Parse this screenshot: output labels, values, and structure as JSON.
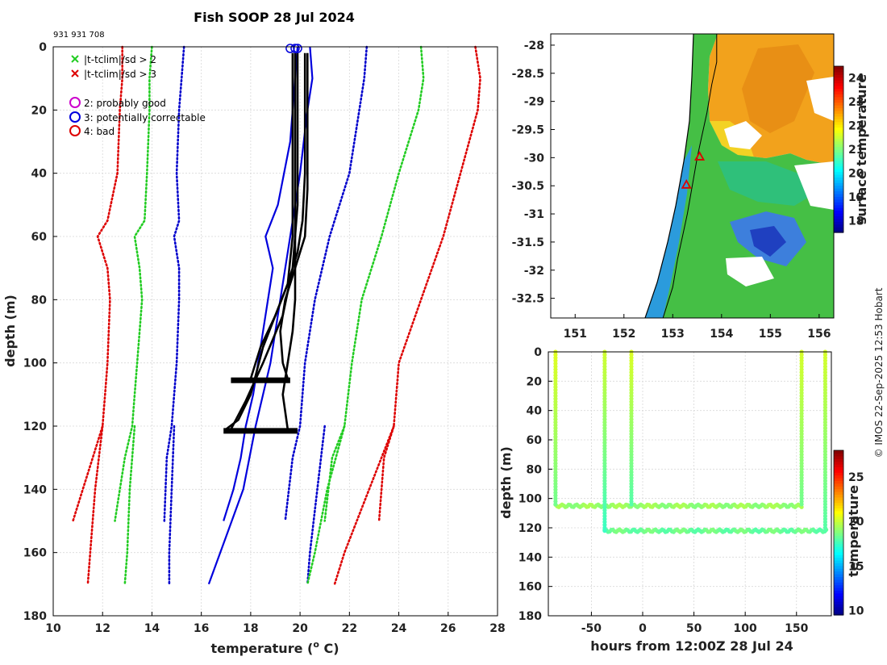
{
  "chart_data": [
    {
      "type": "line",
      "title": "Fish SOOP 28 Jul 2024",
      "subtitle": "931 931 708",
      "xlabel": "temperature (",
      "xlabel_sup": "o",
      "xlabel_end": " C)",
      "ylabel": "depth (m)",
      "xlim": [
        10,
        28
      ],
      "ylim": [
        180,
        0
      ],
      "xticks": [
        "10",
        "12",
        "14",
        "16",
        "18",
        "20",
        "22",
        "24",
        "26",
        "28"
      ],
      "yticks": [
        "0",
        "20",
        "40",
        "60",
        "80",
        "100",
        "120",
        "140",
        "160",
        "180"
      ],
      "legend": [
        {
          "label": "|t-tclim|/sd > 2",
          "marker": "x",
          "color": "#22cc22"
        },
        {
          "label": "|t-tclim|/sd > 3",
          "marker": "x",
          "color": "#dd0000"
        },
        {
          "label": "2: probably good",
          "marker": "o",
          "color": "#cc00cc"
        },
        {
          "label": "3: potentially correctable",
          "marker": "o",
          "color": "#0000dd"
        },
        {
          "label": "4: bad",
          "marker": "o",
          "color": "#dd0000"
        }
      ],
      "series": [
        {
          "name": "clim -3sd",
          "color": "#dd0000",
          "style": "dotted",
          "points": [
            [
              12.8,
              0
            ],
            [
              12.8,
              10
            ],
            [
              12.7,
              20
            ],
            [
              12.6,
              40
            ],
            [
              12.2,
              55
            ],
            [
              11.8,
              60
            ],
            [
              12.2,
              70
            ],
            [
              12.3,
              80
            ],
            [
              12.2,
              100
            ],
            [
              12.1,
              110
            ],
            [
              12.0,
              120
            ],
            [
              11.6,
              130
            ],
            [
              11.2,
              140
            ],
            [
              10.8,
              150
            ]
          ]
        },
        {
          "name": "clim -3sd deep",
          "color": "#dd0000",
          "style": "dotted",
          "points": [
            [
              12.0,
              120
            ],
            [
              11.7,
              140
            ],
            [
              11.5,
              160
            ],
            [
              11.4,
              170
            ]
          ]
        },
        {
          "name": "clim -2sd",
          "color": "#22cc22",
          "style": "dotted",
          "points": [
            [
              14.0,
              0
            ],
            [
              13.9,
              10
            ],
            [
              13.9,
              20
            ],
            [
              13.8,
              40
            ],
            [
              13.7,
              55
            ],
            [
              13.3,
              60
            ],
            [
              13.5,
              70
            ],
            [
              13.6,
              80
            ],
            [
              13.4,
              100
            ],
            [
              13.3,
              110
            ],
            [
              13.2,
              120
            ],
            [
              12.9,
              130
            ],
            [
              12.5,
              150
            ]
          ]
        },
        {
          "name": "clim -2sd deep",
          "color": "#22cc22",
          "style": "dotted",
          "points": [
            [
              13.3,
              120
            ],
            [
              13.1,
              140
            ],
            [
              13.0,
              160
            ],
            [
              12.9,
              170
            ]
          ]
        },
        {
          "name": "clim -1sd",
          "color": "#0000cc",
          "style": "dotted",
          "points": [
            [
              15.3,
              0
            ],
            [
              15.2,
              10
            ],
            [
              15.1,
              20
            ],
            [
              15.0,
              40
            ],
            [
              15.1,
              55
            ],
            [
              14.9,
              60
            ],
            [
              15.1,
              70
            ],
            [
              15.1,
              80
            ],
            [
              15.0,
              100
            ],
            [
              14.9,
              110
            ],
            [
              14.8,
              120
            ],
            [
              14.6,
              130
            ],
            [
              14.5,
              150
            ]
          ]
        },
        {
          "name": "clim -1sd deep",
          "color": "#0000cc",
          "style": "dotted",
          "points": [
            [
              14.9,
              120
            ],
            [
              14.8,
              140
            ],
            [
              14.7,
              160
            ],
            [
              14.7,
              170
            ]
          ]
        },
        {
          "name": "clim +1sd",
          "color": "#0000cc",
          "style": "dotted",
          "points": [
            [
              22.7,
              0
            ],
            [
              22.6,
              10
            ],
            [
              22.4,
              20
            ],
            [
              22.0,
              40
            ],
            [
              21.2,
              60
            ],
            [
              20.6,
              80
            ],
            [
              20.2,
              100
            ],
            [
              20.0,
              120
            ],
            [
              19.7,
              130
            ],
            [
              19.4,
              150
            ]
          ]
        },
        {
          "name": "clim +1sd deep",
          "color": "#0000cc",
          "style": "dotted",
          "points": [
            [
              21.0,
              120
            ],
            [
              20.7,
              140
            ],
            [
              20.4,
              160
            ],
            [
              20.3,
              170
            ]
          ]
        },
        {
          "name": "clim +2sd",
          "color": "#22cc22",
          "style": "dotted",
          "points": [
            [
              24.9,
              0
            ],
            [
              25.0,
              10
            ],
            [
              24.8,
              20
            ],
            [
              24.0,
              40
            ],
            [
              23.3,
              60
            ],
            [
              22.5,
              80
            ],
            [
              22.1,
              100
            ],
            [
              21.8,
              120
            ],
            [
              21.3,
              130
            ],
            [
              21.0,
              150
            ]
          ]
        },
        {
          "name": "clim +2sd deep",
          "color": "#22cc22",
          "style": "dotted",
          "points": [
            [
              21.8,
              120
            ],
            [
              21.1,
              140
            ],
            [
              20.6,
              160
            ],
            [
              20.3,
              170
            ]
          ]
        },
        {
          "name": "clim +3sd",
          "color": "#dd0000",
          "style": "dotted",
          "points": [
            [
              27.1,
              0
            ],
            [
              27.3,
              10
            ],
            [
              27.2,
              20
            ],
            [
              26.5,
              40
            ],
            [
              25.8,
              60
            ],
            [
              24.9,
              80
            ],
            [
              24.0,
              100
            ],
            [
              23.8,
              120
            ],
            [
              23.4,
              130
            ],
            [
              23.2,
              150
            ]
          ]
        },
        {
          "name": "clim +3sd deep",
          "color": "#dd0000",
          "style": "dotted",
          "points": [
            [
              23.8,
              120
            ],
            [
              22.8,
              140
            ],
            [
              21.8,
              160
            ],
            [
              21.4,
              170
            ]
          ]
        },
        {
          "name": "profile blue 1",
          "color": "#0000dd",
          "style": "solid",
          "points": [
            [
              19.9,
              0
            ],
            [
              19.6,
              30
            ],
            [
              19.1,
              50
            ],
            [
              18.6,
              60
            ],
            [
              18.9,
              70
            ],
            [
              18.7,
              80
            ],
            [
              18.5,
              90
            ],
            [
              18.3,
              100
            ],
            [
              18.1,
              110
            ],
            [
              17.8,
              120
            ],
            [
              17.6,
              130
            ],
            [
              17.3,
              140
            ],
            [
              16.9,
              150
            ]
          ]
        },
        {
          "name": "profile blue 2",
          "color": "#0000dd",
          "style": "solid",
          "points": [
            [
              20.4,
              0
            ],
            [
              20.5,
              10
            ],
            [
              20.3,
              20
            ],
            [
              20.0,
              40
            ],
            [
              19.6,
              60
            ],
            [
              19.2,
              80
            ],
            [
              18.8,
              100
            ],
            [
              18.2,
              120
            ],
            [
              17.7,
              140
            ],
            [
              17.0,
              155
            ],
            [
              16.3,
              170
            ]
          ]
        },
        {
          "name": "profile black 1",
          "color": "#000000",
          "style": "solid",
          "points": [
            [
              20.2,
              2
            ],
            [
              20.2,
              40
            ],
            [
              20.1,
              55
            ],
            [
              19.9,
              65
            ],
            [
              19.5,
              75
            ],
            [
              19.0,
              85
            ],
            [
              18.4,
              95
            ],
            [
              18.0,
              105
            ]
          ]
        },
        {
          "name": "profile black 2",
          "color": "#000000",
          "style": "solid",
          "points": [
            [
              20.3,
              2
            ],
            [
              20.3,
              45
            ],
            [
              20.2,
              60
            ],
            [
              19.8,
              70
            ],
            [
              19.4,
              80
            ],
            [
              19.2,
              90
            ],
            [
              19.3,
              100
            ],
            [
              19.5,
              105
            ]
          ]
        },
        {
          "name": "profile black 3",
          "color": "#000000",
          "style": "solid",
          "points": [
            [
              19.8,
              2
            ],
            [
              19.8,
              60
            ],
            [
              19.8,
              80
            ],
            [
              19.7,
              90
            ],
            [
              19.5,
              100
            ],
            [
              19.3,
              110
            ],
            [
              19.5,
              121
            ]
          ]
        },
        {
          "name": "profile black 4",
          "color": "#000000",
          "style": "solid",
          "points": [
            [
              19.7,
              2
            ],
            [
              19.7,
              60
            ],
            [
              19.5,
              75
            ],
            [
              19.0,
              85
            ],
            [
              18.5,
              95
            ],
            [
              18.0,
              110
            ],
            [
              17.5,
              118
            ],
            [
              17.0,
              121
            ]
          ]
        },
        {
          "name": "profile black 5",
          "color": "#000000",
          "style": "solid",
          "points": [
            [
              19.9,
              2
            ],
            [
              19.9,
              50
            ],
            [
              19.7,
              70
            ],
            [
              19.3,
              85
            ],
            [
              18.5,
              100
            ],
            [
              17.8,
              112
            ],
            [
              17.2,
              121
            ]
          ]
        }
      ],
      "bottom_bars": [
        {
          "depth": 105.5,
          "xmin": 17.2,
          "xmax": 19.6
        },
        {
          "depth": 121.5,
          "xmin": 16.9,
          "xmax": 19.9
        }
      ],
      "surface_markers": [
        19.6,
        19.8,
        19.9
      ]
    },
    {
      "type": "heatmap",
      "colorbar_label": "surface temperature",
      "colorbar_ticks": [
        "18",
        "19",
        "20",
        "21",
        "22",
        "23",
        "24"
      ],
      "colorbar_range": [
        17.5,
        24.5
      ],
      "xlim": [
        150.5,
        156.3
      ],
      "ylim": [
        -32.85,
        -27.8
      ],
      "xticks": [
        "151",
        "152",
        "153",
        "154",
        "155",
        "156"
      ],
      "yticks": [
        "-28",
        "-28.5",
        "-29",
        "-29.5",
        "-30",
        "-30.5",
        "-31",
        "-31.5",
        "-32",
        "-32.5"
      ],
      "track": [
        [
          153.9,
          -27.8
        ],
        [
          153.9,
          -28.3
        ],
        [
          153.8,
          -28.7
        ],
        [
          153.7,
          -29.2
        ],
        [
          153.6,
          -29.6
        ],
        [
          153.5,
          -30.0
        ],
        [
          153.4,
          -30.5
        ],
        [
          153.3,
          -31.0
        ],
        [
          153.2,
          -31.4
        ],
        [
          153.1,
          -31.8
        ],
        [
          153.0,
          -32.3
        ],
        [
          152.8,
          -32.85
        ]
      ],
      "stations": [
        [
          153.55,
          -29.98
        ],
        [
          153.28,
          -30.48
        ]
      ]
    },
    {
      "type": "scatter",
      "xlabel": "hours from 12:00Z 28 Jul 24",
      "ylabel": "depth (m)",
      "colorbar_label": "temperature",
      "colorbar_ticks": [
        "10",
        "15",
        "20",
        "25"
      ],
      "colorbar_range": [
        9.5,
        28
      ],
      "xlim": [
        -92,
        184
      ],
      "ylim": [
        180,
        0
      ],
      "xticks": [
        "-50",
        "0",
        "50",
        "100",
        "150"
      ],
      "yticks": [
        "0",
        "20",
        "40",
        "60",
        "80",
        "100",
        "120",
        "140",
        "160",
        "180"
      ],
      "profiles": [
        {
          "hour": -85,
          "bottom": 104,
          "top_temp": 20.5,
          "bottom_temp": 18.5
        },
        {
          "hour": -37,
          "bottom": 122,
          "top_temp": 20.2,
          "bottom_temp": 17.5
        },
        {
          "hour": -11,
          "bottom": 104,
          "top_temp": 20.4,
          "bottom_temp": 18.0
        },
        {
          "hour": 155,
          "bottom": 104,
          "top_temp": 20.3,
          "bottom_temp": 18.5
        },
        {
          "hour": 178,
          "bottom": 122,
          "top_temp": 20.3,
          "bottom_temp": 18.0
        }
      ],
      "bottom_tracks": [
        {
          "from": -85,
          "to": 155,
          "depth": 105,
          "temp": 19.2
        },
        {
          "from": -37,
          "to": 180,
          "depth": 122,
          "temp": 18.4
        }
      ]
    }
  ],
  "credit": "© IMOS 22-Sep-2025 12:53 Hobart"
}
